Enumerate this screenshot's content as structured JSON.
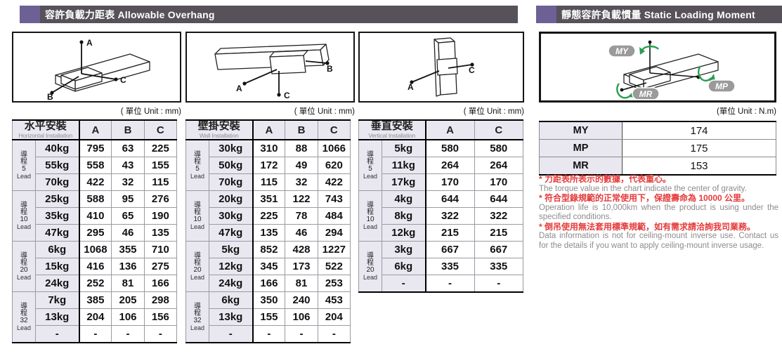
{
  "headers": {
    "left": "容許負載力距表 Allowable Overhang",
    "right": "靜態容許負載慣量 Static Loading Moment"
  },
  "units": {
    "mm": "( 單位 Unit : mm)",
    "nm": "(單位 Unit : N.m)"
  },
  "diagrams": {
    "horizontal": {
      "a": "A",
      "b": "B",
      "c": "C"
    },
    "wall": {
      "a": "A",
      "b": "B",
      "c": "C"
    },
    "vertical": {
      "a": "A",
      "c": "C"
    },
    "moment": {
      "my": "MY",
      "mp": "MP",
      "mr": "MR"
    }
  },
  "overhang_tables": [
    {
      "title_zh": "水平安裝",
      "title_en": "Horizontal Installation",
      "columns": [
        "A",
        "B",
        "C"
      ],
      "groups": [
        {
          "lead_zh": "導程",
          "lead_num": "5",
          "lead_en": "Lead",
          "rows": [
            [
              "40kg",
              "795",
              "63",
              "225"
            ],
            [
              "55kg",
              "558",
              "43",
              "155"
            ],
            [
              "70kg",
              "422",
              "32",
              "115"
            ]
          ]
        },
        {
          "lead_zh": "導程",
          "lead_num": "10",
          "lead_en": "Lead",
          "rows": [
            [
              "25kg",
              "588",
              "95",
              "276"
            ],
            [
              "35kg",
              "410",
              "65",
              "190"
            ],
            [
              "47kg",
              "295",
              "46",
              "135"
            ]
          ]
        },
        {
          "lead_zh": "導程",
          "lead_num": "20",
          "lead_en": "Lead",
          "rows": [
            [
              "6kg",
              "1068",
              "355",
              "710"
            ],
            [
              "15kg",
              "416",
              "136",
              "275"
            ],
            [
              "24kg",
              "252",
              "81",
              "166"
            ]
          ]
        },
        {
          "lead_zh": "導程",
          "lead_num": "32",
          "lead_en": "Lead",
          "rows": [
            [
              "7kg",
              "385",
              "205",
              "298"
            ],
            [
              "13kg",
              "204",
              "106",
              "156"
            ],
            [
              "-",
              "-",
              "-",
              "-"
            ]
          ]
        }
      ]
    },
    {
      "title_zh": "壁掛安裝",
      "title_en": "Wall Installation",
      "columns": [
        "A",
        "B",
        "C"
      ],
      "groups": [
        {
          "lead_zh": "導程",
          "lead_num": "5",
          "lead_en": "Lead",
          "rows": [
            [
              "30kg",
              "310",
              "88",
              "1066"
            ],
            [
              "50kg",
              "172",
              "49",
              "620"
            ],
            [
              "70kg",
              "115",
              "32",
              "422"
            ]
          ]
        },
        {
          "lead_zh": "導程",
          "lead_num": "10",
          "lead_en": "Lead",
          "rows": [
            [
              "20kg",
              "351",
              "122",
              "743"
            ],
            [
              "30kg",
              "225",
              "78",
              "484"
            ],
            [
              "47kg",
              "135",
              "46",
              "294"
            ]
          ]
        },
        {
          "lead_zh": "導程",
          "lead_num": "20",
          "lead_en": "Lead",
          "rows": [
            [
              "5kg",
              "852",
              "428",
              "1227"
            ],
            [
              "12kg",
              "345",
              "173",
              "522"
            ],
            [
              "24kg",
              "166",
              "81",
              "253"
            ]
          ]
        },
        {
          "lead_zh": "導程",
          "lead_num": "32",
          "lead_en": "Lead",
          "rows": [
            [
              "6kg",
              "350",
              "240",
              "453"
            ],
            [
              "13kg",
              "155",
              "106",
              "204"
            ],
            [
              "-",
              "-",
              "-",
              "-"
            ]
          ]
        }
      ]
    },
    {
      "title_zh": "垂直安裝",
      "title_en": "Vertical Installation",
      "columns": [
        "A",
        "C"
      ],
      "groups": [
        {
          "lead_zh": "導程",
          "lead_num": "5",
          "lead_en": "Lead",
          "rows": [
            [
              "5kg",
              "580",
              "580"
            ],
            [
              "11kg",
              "264",
              "264"
            ],
            [
              "17kg",
              "170",
              "170"
            ]
          ]
        },
        {
          "lead_zh": "導程",
          "lead_num": "10",
          "lead_en": "Lead",
          "rows": [
            [
              "4kg",
              "644",
              "644"
            ],
            [
              "8kg",
              "322",
              "322"
            ],
            [
              "12kg",
              "215",
              "215"
            ]
          ]
        },
        {
          "lead_zh": "導程",
          "lead_num": "20",
          "lead_en": "Lead",
          "rows": [
            [
              "3kg",
              "667",
              "667"
            ],
            [
              "6kg",
              "335",
              "335"
            ],
            [
              "-",
              "-",
              "-"
            ]
          ]
        }
      ]
    }
  ],
  "moment_table": {
    "rows": [
      [
        "MY",
        "174"
      ],
      [
        "MP",
        "175"
      ],
      [
        "MR",
        "153"
      ]
    ]
  },
  "notes": [
    {
      "zh": "* 力距表所表示的數據，代表重心。",
      "en": "The torque value in the chart indicate the center of gravity."
    },
    {
      "zh": "* 符合型錄規範的正常使用下，保證壽命為 10000 公里。",
      "en": "Operation life is 10,000km when the product is using under the specified conditions."
    },
    {
      "zh": "* 倒吊使用無法套用標準規範，如有需求請洽詢我司業務。",
      "en": "Data information is not for ceiling-mount inverse use. Contact us for the details if you want to apply ceiling-mount inverse usage."
    }
  ]
}
